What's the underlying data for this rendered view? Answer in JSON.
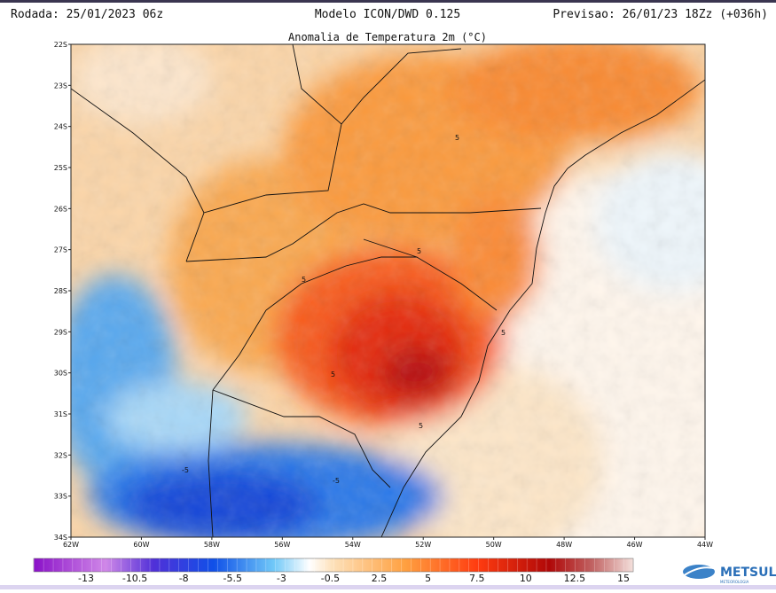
{
  "header": {
    "run": "Rodada: 25/01/2023 06z",
    "model": "Modelo ICON/DWD 0.125",
    "forecast": "Previsao: 26/01/23 18Zz (+036h)"
  },
  "map": {
    "title": "Anomalia de Temperatura 2m (°C)",
    "lat_labels": [
      "22S",
      "23S",
      "24S",
      "25S",
      "26S",
      "27S",
      "28S",
      "29S",
      "30S",
      "31S",
      "32S",
      "33S",
      "34S"
    ],
    "lon_labels": [
      "62W",
      "60W",
      "58W",
      "56W",
      "54W",
      "52W",
      "50W",
      "48W",
      "46W",
      "44W"
    ],
    "contour_labels": [
      "5",
      "5",
      "5",
      "5",
      "5",
      "5",
      "-5",
      "-5"
    ]
  },
  "colorbar": {
    "labels": [
      "-13",
      "-10.5",
      "-8",
      "-5.5",
      "-3",
      "-0.5",
      "2.5",
      "5",
      "7.5",
      "10",
      "12.5",
      "15"
    ]
  },
  "logo": {
    "name": "METSUL",
    "tagline": "METEOROLOGIA"
  }
}
